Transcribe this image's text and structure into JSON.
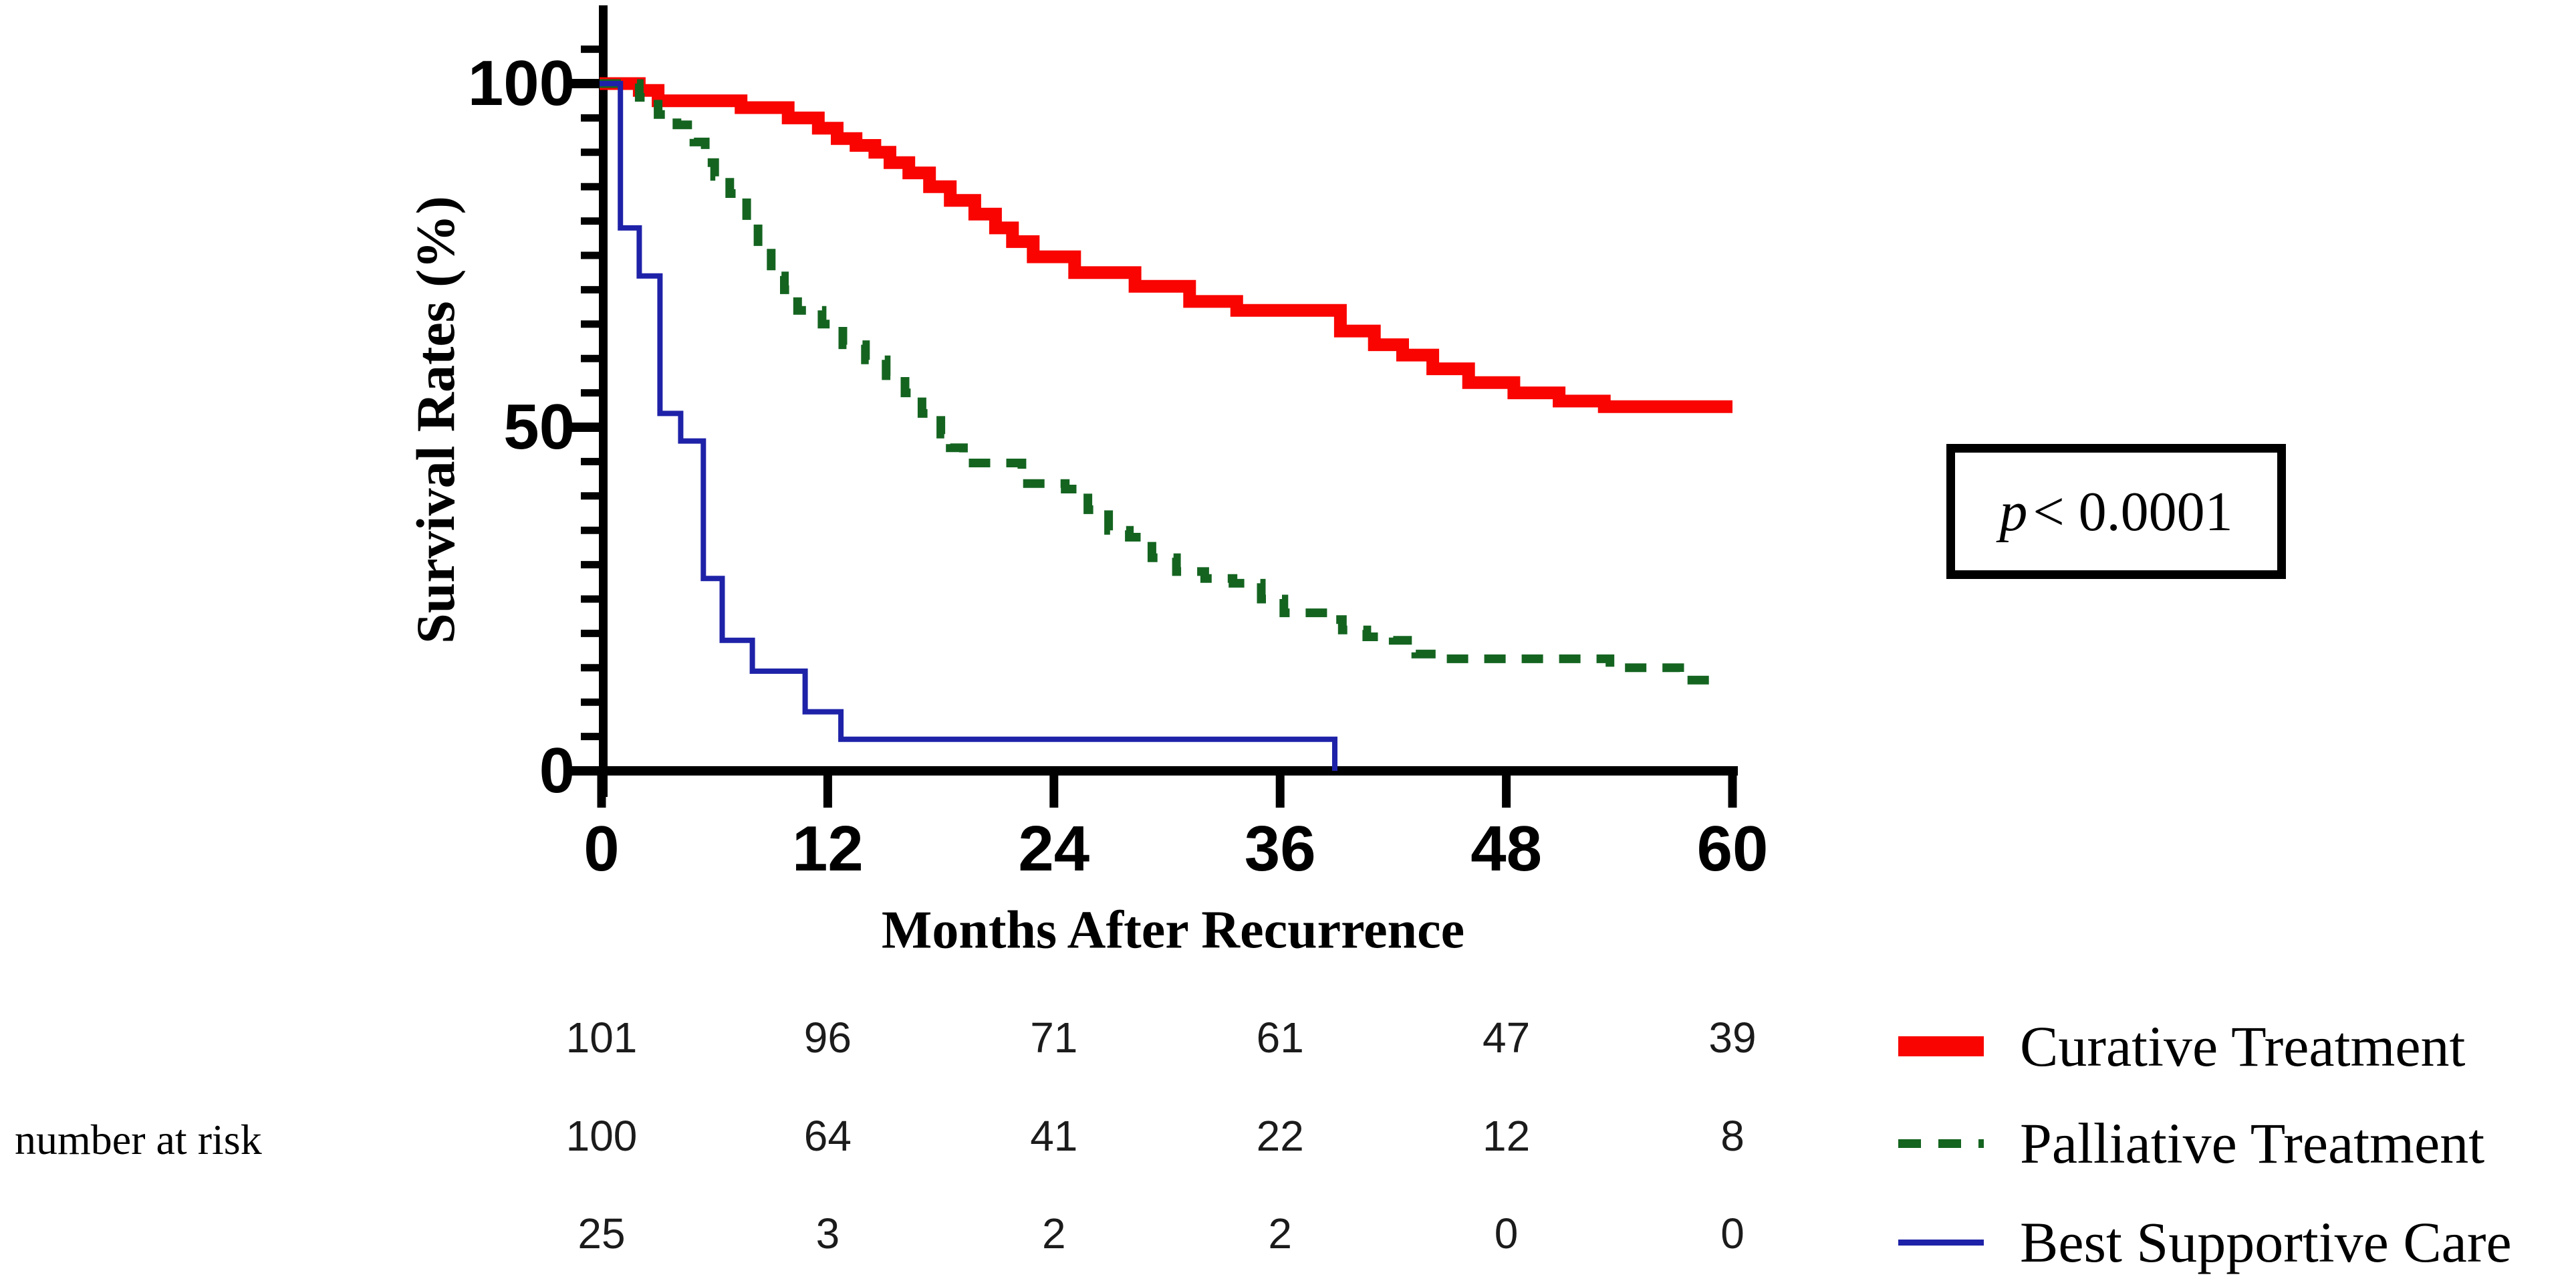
{
  "chart_data": {
    "type": "line",
    "subtype": "kaplan-meier-step-curves",
    "title": "",
    "xlabel": "Months After Recurrence",
    "ylabel": "Survival Rates (%)",
    "xlim": [
      0,
      60
    ],
    "ylim": [
      0,
      100
    ],
    "x_ticks": [
      0,
      12,
      24,
      36,
      48,
      60
    ],
    "y_ticks": [
      0,
      50,
      100
    ],
    "y_minor_tick_step": 5,
    "y_minor_tick_max": 105,
    "grid": false,
    "legend_position": "bottom-right",
    "annotation": {
      "p_italic": "p",
      "p_rest": " < 0.0001",
      "text": "p < 0.0001"
    },
    "series": [
      {
        "name": "Curative Treatment",
        "color": "#F90400",
        "line_style": "solid",
        "line_width": 19,
        "steps": [
          [
            0,
            100
          ],
          [
            2,
            99
          ],
          [
            3,
            97.5
          ],
          [
            7.4,
            96.5
          ],
          [
            9.9,
            95
          ],
          [
            11.5,
            93.5
          ],
          [
            12.5,
            92
          ],
          [
            13.5,
            91
          ],
          [
            14.5,
            90
          ],
          [
            15.3,
            88.5
          ],
          [
            16.3,
            87
          ],
          [
            17.4,
            85
          ],
          [
            18.5,
            83
          ],
          [
            19.8,
            81
          ],
          [
            20.9,
            79
          ],
          [
            21.8,
            77
          ],
          [
            22.9,
            74.8
          ],
          [
            25.1,
            72.5
          ],
          [
            28.3,
            70.5
          ],
          [
            31.2,
            68.3
          ],
          [
            33.7,
            67
          ],
          [
            39.2,
            64
          ],
          [
            41,
            62
          ],
          [
            42.5,
            60.5
          ],
          [
            44.1,
            58.5
          ],
          [
            46,
            56.5
          ],
          [
            48.4,
            55
          ],
          [
            50.8,
            53.8
          ],
          [
            53.2,
            53
          ],
          [
            60,
            53
          ]
        ]
      },
      {
        "name": "Palliative Treatment",
        "color": "#146420",
        "line_style": "dashed",
        "line_width": 13,
        "steps": [
          [
            0,
            100
          ],
          [
            2,
            98
          ],
          [
            3,
            95.5
          ],
          [
            4,
            94
          ],
          [
            4.9,
            91.5
          ],
          [
            5.5,
            88.5
          ],
          [
            6,
            86.5
          ],
          [
            6.8,
            84
          ],
          [
            7.7,
            80
          ],
          [
            8.3,
            76
          ],
          [
            9,
            72
          ],
          [
            9.7,
            70
          ],
          [
            10.4,
            67
          ],
          [
            11.7,
            65
          ],
          [
            12.8,
            62
          ],
          [
            14,
            59.8
          ],
          [
            15.1,
            57.5
          ],
          [
            16.1,
            55
          ],
          [
            17,
            52
          ],
          [
            18,
            49
          ],
          [
            18.5,
            47
          ],
          [
            19.2,
            44.8
          ],
          [
            22.3,
            41.8
          ],
          [
            24.6,
            41
          ],
          [
            25.8,
            38
          ],
          [
            26.9,
            35
          ],
          [
            28,
            34
          ],
          [
            29.2,
            31
          ],
          [
            30.5,
            29
          ],
          [
            32,
            28
          ],
          [
            33.5,
            27.3
          ],
          [
            35,
            25
          ],
          [
            36.2,
            23
          ],
          [
            38.5,
            22
          ],
          [
            39.3,
            20.5
          ],
          [
            40.6,
            19.5
          ],
          [
            42,
            19
          ],
          [
            43.2,
            17
          ],
          [
            44.7,
            16.3
          ],
          [
            53.5,
            15
          ],
          [
            57.2,
            13.2
          ],
          [
            59.6,
            13.2
          ]
        ]
      },
      {
        "name": "Best Supportive Care",
        "color": "#1E22A8",
        "line_style": "solid",
        "line_width": 8,
        "steps": [
          [
            0,
            100
          ],
          [
            1,
            79
          ],
          [
            2,
            72
          ],
          [
            3.1,
            52
          ],
          [
            4.2,
            48
          ],
          [
            5.4,
            28
          ],
          [
            6.4,
            19
          ],
          [
            8,
            14.5
          ],
          [
            10.8,
            8.6
          ],
          [
            12.7,
            4.6
          ],
          [
            38.9,
            4.6
          ],
          [
            38.9,
            0
          ]
        ]
      }
    ],
    "number_at_risk": {
      "label": "number at risk",
      "time_points": [
        0,
        12,
        24,
        36,
        48,
        60
      ],
      "rows": [
        {
          "series": "Curative Treatment",
          "counts": [
            101,
            96,
            71,
            61,
            47,
            39
          ]
        },
        {
          "series": "Palliative Treatment",
          "counts": [
            100,
            64,
            41,
            22,
            12,
            8
          ]
        },
        {
          "series": "Best Supportive Care",
          "counts": [
            25,
            3,
            2,
            2,
            0,
            0
          ]
        }
      ]
    }
  }
}
